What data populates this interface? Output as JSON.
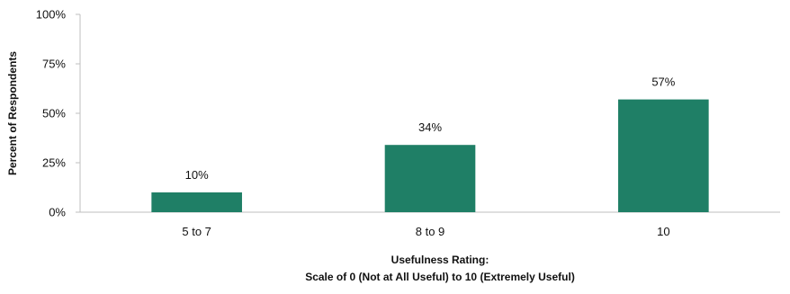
{
  "chart_data": {
    "type": "bar",
    "categories": [
      "5 to 7",
      "8 to 9",
      "10"
    ],
    "values": [
      10,
      34,
      57
    ],
    "data_labels": [
      "10%",
      "34%",
      "57%"
    ],
    "title": "",
    "xlabel_line1": "Usefulness Rating:",
    "xlabel_line2": "Scale of 0 (Not at All Useful) to 10 (Extremely Useful)",
    "ylabel": "Percent of Respondents",
    "ylim": [
      0,
      100
    ],
    "y_ticks": [
      0,
      25,
      50,
      75,
      100
    ],
    "y_tick_labels": [
      "0%",
      "25%",
      "50%",
      "75%",
      "100%"
    ],
    "grid": false,
    "legend": "none",
    "bar_color": "#1f7f66",
    "axis_color": "#bfbfbf"
  }
}
